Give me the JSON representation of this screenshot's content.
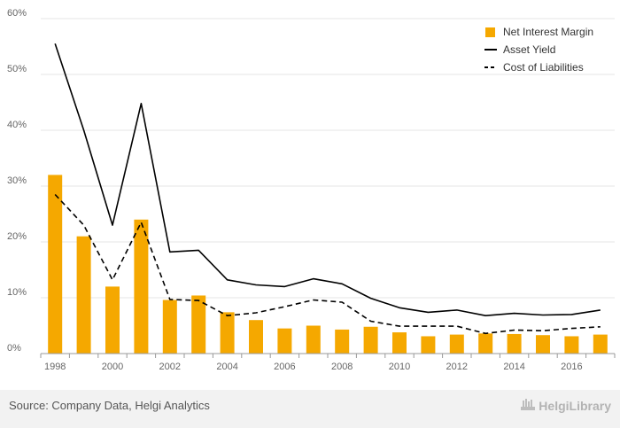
{
  "chart_data": {
    "type": "bar",
    "x": [
      "1998",
      "1999",
      "2000",
      "2001",
      "2002",
      "2003",
      "2004",
      "2005",
      "2006",
      "2007",
      "2008",
      "2009",
      "2010",
      "2011",
      "2012",
      "2013",
      "2014",
      "2015",
      "2016",
      "2017"
    ],
    "tick_labels": [
      "1998",
      "2000",
      "2002",
      "2004",
      "2006",
      "2008",
      "2010",
      "2012",
      "2014",
      "2016"
    ],
    "series": [
      {
        "name": "Net Interest Margin",
        "kind": "bar",
        "color": "#f5a800",
        "values": [
          32.0,
          21.0,
          12.0,
          24.0,
          9.6,
          10.4,
          7.4,
          6.0,
          4.5,
          5.0,
          4.3,
          4.8,
          3.8,
          3.1,
          3.4,
          3.6,
          3.5,
          3.3,
          3.1,
          3.4
        ]
      },
      {
        "name": "Asset Yield",
        "kind": "line",
        "color": "#000000",
        "dash": "solid",
        "values": [
          55.5,
          40.0,
          23.0,
          44.8,
          18.2,
          18.5,
          13.2,
          12.3,
          12.0,
          13.4,
          12.5,
          9.9,
          8.2,
          7.4,
          7.8,
          6.8,
          7.2,
          6.9,
          7.0,
          7.8
        ]
      },
      {
        "name": "Cost of Liabilities",
        "kind": "line",
        "color": "#000000",
        "dash": "dashed",
        "values": [
          28.5,
          23.0,
          13.2,
          23.5,
          9.7,
          9.5,
          6.8,
          7.3,
          8.4,
          9.6,
          9.2,
          5.8,
          4.9,
          4.9,
          4.9,
          3.6,
          4.2,
          4.1,
          4.5,
          4.8
        ]
      }
    ],
    "yticks": [
      0,
      10,
      20,
      30,
      40,
      50,
      60
    ],
    "ytick_suffix": "%",
    "ylim": [
      0,
      60
    ],
    "grid": true,
    "legend_position": "top-right"
  },
  "footer": {
    "source": "Source: Company Data, Helgi Analytics",
    "brand": "HelgiLibrary"
  },
  "colors": {
    "footer_bg": "#f2f2f2",
    "grid": "#e6e6e6",
    "axis": "#999999"
  },
  "icons": {
    "brand_logo": "stacked-books-icon"
  }
}
